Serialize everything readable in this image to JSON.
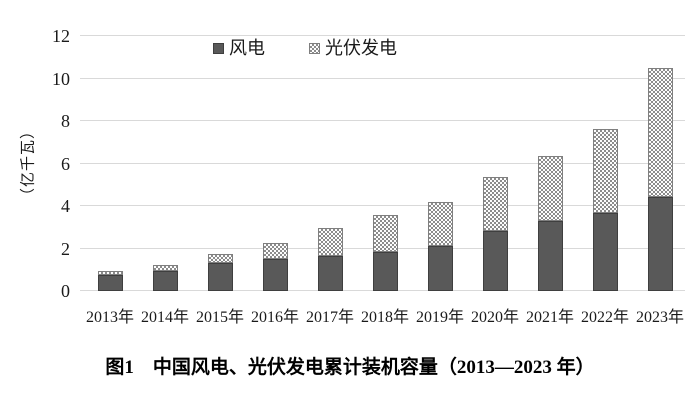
{
  "figure": {
    "caption": "图1　中国风电、光伏发电累计装机容量（2013—2023 年）"
  },
  "chart_data": {
    "type": "bar",
    "stacked": true,
    "title": "",
    "categories": [
      "2013年",
      "2014年",
      "2015年",
      "2016年",
      "2017年",
      "2018年",
      "2019年",
      "2020年",
      "2021年",
      "2022年",
      "2023年"
    ],
    "series": [
      {
        "name": "风电",
        "fill": "solid",
        "color": "#595959",
        "values": [
          0.77,
          0.96,
          1.31,
          1.49,
          1.64,
          1.84,
          2.1,
          2.82,
          3.28,
          3.65,
          4.41
        ]
      },
      {
        "name": "光伏发电",
        "fill": "dot-pattern",
        "color": "#bfbfbf",
        "values": [
          0.19,
          0.28,
          0.43,
          0.77,
          1.3,
          1.74,
          2.05,
          2.53,
          3.07,
          3.93,
          6.09
        ]
      }
    ],
    "xlabel": "",
    "ylabel": "（亿千瓦）",
    "ylim": [
      0,
      12
    ],
    "yticks": [
      0,
      2,
      4,
      6,
      8,
      10,
      12
    ],
    "grid": true,
    "gridline_color": "#d9d9d9",
    "legend_position": "top-center"
  }
}
